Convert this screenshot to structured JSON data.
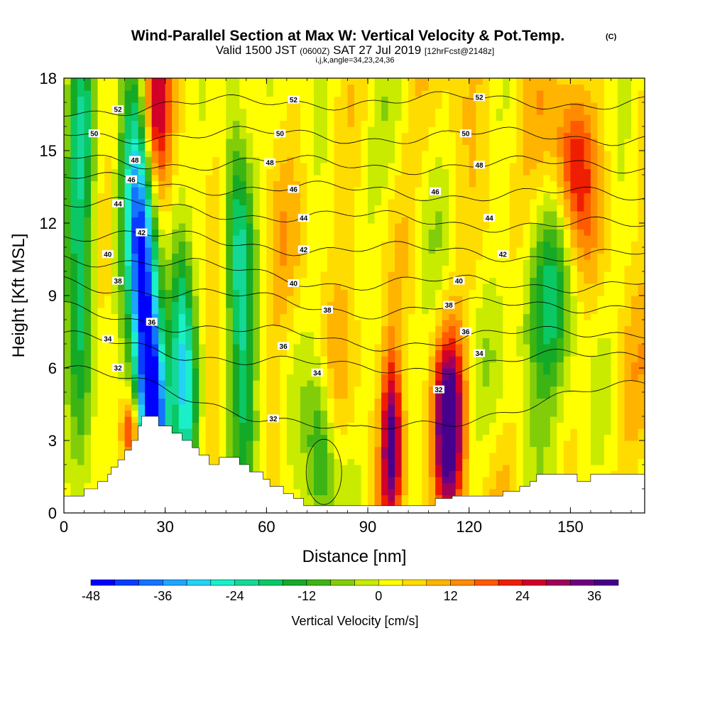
{
  "title": {
    "main": "Wind-Parallel Section at Max W: Vertical Velocity & Pot.Temp.",
    "copyright": "(C)",
    "valid_prefix": "Valid 1500 JST",
    "valid_z": "(0600Z)",
    "valid_date": "SAT 27 Jul 2019",
    "forecast": "[12hrFcst@2148z]",
    "params": "i,j,k,angle=34,23,24,36"
  },
  "chart_data": {
    "type": "heatmap",
    "xlabel": "Distance [nm]",
    "ylabel": "Height [Kft MSL]",
    "xlim": [
      0,
      172
    ],
    "ylim": [
      0,
      18
    ],
    "xticks": [
      0,
      30,
      60,
      90,
      120,
      150
    ],
    "yticks": [
      0,
      3,
      6,
      9,
      12,
      15,
      18
    ],
    "colorbar": {
      "title": "Vertical Velocity [cm/s]",
      "range": [
        -48,
        40
      ],
      "step": 4,
      "tick_values": [
        -48,
        -36,
        -24,
        -12,
        0,
        12,
        24,
        36
      ],
      "colors": [
        "#0000ff",
        "#0a3cff",
        "#1473ff",
        "#1ea5ff",
        "#23d2f5",
        "#19f0c8",
        "#14d896",
        "#0ac864",
        "#14aa28",
        "#3cb414",
        "#82cd0a",
        "#c8eb00",
        "#ffff00",
        "#ffdc00",
        "#ffb400",
        "#ff8c00",
        "#ff5a00",
        "#f01e00",
        "#d20028",
        "#a0005a",
        "#6e0082",
        "#46008c"
      ]
    },
    "theta_contour_labels": [
      32,
      34,
      36,
      38,
      40,
      42,
      44,
      46,
      48,
      50,
      52
    ],
    "theta_level_heights": [
      {
        "theta": 32,
        "left": 6.0,
        "mid": 3.2,
        "right": 5.3
      },
      {
        "theta": 34,
        "left": 7.2,
        "mid": 5.9,
        "right": 6.6
      },
      {
        "theta": 36,
        "left": 8.4,
        "mid": 7.0,
        "right": 7.6
      },
      {
        "theta": 38,
        "left": 9.6,
        "mid": 8.4,
        "right": 8.7
      },
      {
        "theta": 40,
        "left": 10.7,
        "mid": 9.5,
        "right": 9.5
      },
      {
        "theta": 42,
        "left": 11.6,
        "mid": 10.9,
        "right": 10.6
      },
      {
        "theta": 44,
        "left": 12.8,
        "mid": 12.2,
        "right": 11.8
      },
      {
        "theta": 46,
        "left": 13.8,
        "mid": 13.3,
        "right": 13.1
      },
      {
        "theta": 48,
        "left": 14.6,
        "mid": 14.4,
        "right": 14.4
      },
      {
        "theta": 50,
        "left": 15.7,
        "mid": 15.6,
        "right": 15.6
      },
      {
        "theta": 52,
        "left": 16.7,
        "mid": 17.1,
        "right": 17.0
      }
    ],
    "contour_labels": [
      {
        "text": "52",
        "x": 16,
        "y": 16.7
      },
      {
        "text": "50",
        "x": 9,
        "y": 15.7
      },
      {
        "text": "48",
        "x": 21,
        "y": 14.6
      },
      {
        "text": "46",
        "x": 20,
        "y": 13.8
      },
      {
        "text": "44",
        "x": 16,
        "y": 12.8
      },
      {
        "text": "42",
        "x": 23,
        "y": 11.6
      },
      {
        "text": "40",
        "x": 13,
        "y": 10.7
      },
      {
        "text": "38",
        "x": 16,
        "y": 9.6
      },
      {
        "text": "36",
        "x": 26,
        "y": 7.9
      },
      {
        "text": "34",
        "x": 13,
        "y": 7.2
      },
      {
        "text": "32",
        "x": 16,
        "y": 6.0
      },
      {
        "text": "52",
        "x": 68,
        "y": 17.1
      },
      {
        "text": "50",
        "x": 64,
        "y": 15.7
      },
      {
        "text": "48",
        "x": 61,
        "y": 14.5
      },
      {
        "text": "46",
        "x": 68,
        "y": 13.4
      },
      {
        "text": "44",
        "x": 71,
        "y": 12.2
      },
      {
        "text": "42",
        "x": 71,
        "y": 10.9
      },
      {
        "text": "40",
        "x": 68,
        "y": 9.5
      },
      {
        "text": "38",
        "x": 78,
        "y": 8.4
      },
      {
        "text": "36",
        "x": 65,
        "y": 6.9
      },
      {
        "text": "34",
        "x": 75,
        "y": 5.8
      },
      {
        "text": "32",
        "x": 62,
        "y": 3.9
      },
      {
        "text": "52",
        "x": 123,
        "y": 17.2
      },
      {
        "text": "50",
        "x": 119,
        "y": 15.7
      },
      {
        "text": "48",
        "x": 123,
        "y": 14.4
      },
      {
        "text": "46",
        "x": 110,
        "y": 13.3
      },
      {
        "text": "44",
        "x": 126,
        "y": 12.2
      },
      {
        "text": "42",
        "x": 130,
        "y": 10.7
      },
      {
        "text": "40",
        "x": 117,
        "y": 9.6
      },
      {
        "text": "38",
        "x": 114,
        "y": 8.6
      },
      {
        "text": "36",
        "x": 119,
        "y": 7.5
      },
      {
        "text": "34",
        "x": 123,
        "y": 6.6
      },
      {
        "text": "32",
        "x": 111,
        "y": 5.1
      }
    ],
    "terrain_profile": [
      [
        0,
        0.7
      ],
      [
        6,
        0.7
      ],
      [
        6,
        1.0
      ],
      [
        10,
        1.0
      ],
      [
        10,
        1.3
      ],
      [
        13,
        1.3
      ],
      [
        13,
        1.6
      ],
      [
        14,
        1.6
      ],
      [
        14,
        1.9
      ],
      [
        16,
        1.9
      ],
      [
        16,
        2.2
      ],
      [
        18,
        2.2
      ],
      [
        18,
        2.6
      ],
      [
        20,
        2.6
      ],
      [
        20,
        3.0
      ],
      [
        22,
        3.0
      ],
      [
        22,
        3.6
      ],
      [
        23,
        3.6
      ],
      [
        23,
        4.0
      ],
      [
        28,
        4.0
      ],
      [
        28,
        3.6
      ],
      [
        32,
        3.6
      ],
      [
        32,
        3.3
      ],
      [
        35,
        3.3
      ],
      [
        35,
        3.0
      ],
      [
        38,
        3.0
      ],
      [
        38,
        2.7
      ],
      [
        40,
        2.7
      ],
      [
        40,
        2.4
      ],
      [
        43,
        2.4
      ],
      [
        43,
        2.0
      ],
      [
        46,
        2.0
      ],
      [
        46,
        2.3
      ],
      [
        52,
        2.3
      ],
      [
        52,
        2.0
      ],
      [
        55,
        2.0
      ],
      [
        55,
        1.7
      ],
      [
        59,
        1.7
      ],
      [
        59,
        1.4
      ],
      [
        61,
        1.4
      ],
      [
        61,
        1.1
      ],
      [
        65,
        1.1
      ],
      [
        65,
        0.8
      ],
      [
        68,
        0.8
      ],
      [
        68,
        0.6
      ],
      [
        71,
        0.6
      ],
      [
        71,
        0.3
      ],
      [
        74,
        0.3
      ],
      [
        74,
        0.3
      ],
      [
        110,
        0.3
      ],
      [
        110,
        0.6
      ],
      [
        115,
        0.6
      ],
      [
        115,
        0.7
      ],
      [
        130,
        0.7
      ],
      [
        130,
        0.9
      ],
      [
        135,
        0.9
      ],
      [
        135,
        1.1
      ],
      [
        138,
        1.1
      ],
      [
        138,
        1.3
      ],
      [
        140,
        1.3
      ],
      [
        140,
        1.6
      ],
      [
        152,
        1.6
      ],
      [
        152,
        1.3
      ],
      [
        156,
        1.3
      ],
      [
        156,
        1.6
      ],
      [
        172,
        1.6
      ]
    ],
    "w_features": [
      {
        "x": 5,
        "y": 10,
        "sx": 3,
        "sy": 9,
        "tilt": 0,
        "w": -22
      },
      {
        "x": 24,
        "y": 9,
        "sx": 3.5,
        "sy": 7,
        "tilt": 0.4,
        "w": -46
      },
      {
        "x": 26,
        "y": 4,
        "sx": 3,
        "sy": 2.5,
        "tilt": 0.3,
        "w": -30
      },
      {
        "x": 36,
        "y": 5,
        "sx": 2.5,
        "sy": 5,
        "tilt": 0.3,
        "w": -26
      },
      {
        "x": 52,
        "y": 10,
        "sx": 3,
        "sy": 7,
        "tilt": 0.25,
        "w": -24
      },
      {
        "x": 76,
        "y": 2.5,
        "sx": 3,
        "sy": 2.5,
        "tilt": 0,
        "w": -18
      },
      {
        "x": 144,
        "y": 8.5,
        "sx": 6,
        "sy": 3,
        "tilt": -0.3,
        "w": -20
      },
      {
        "x": 27,
        "y": 17,
        "sx": 3,
        "sy": 3,
        "tilt": 0,
        "w": 26
      },
      {
        "x": 97,
        "y": 3,
        "sx": 2,
        "sy": 2.5,
        "tilt": 0,
        "w": 30
      },
      {
        "x": 114,
        "y": 3.5,
        "sx": 3,
        "sy": 2.5,
        "tilt": 0,
        "w": 40
      },
      {
        "x": 151,
        "y": 14.5,
        "sx": 4,
        "sy": 2.5,
        "tilt": 0,
        "w": 20
      },
      {
        "x": 20,
        "y": 3.5,
        "sx": 2,
        "sy": 1,
        "tilt": 0,
        "w": 22
      }
    ]
  }
}
